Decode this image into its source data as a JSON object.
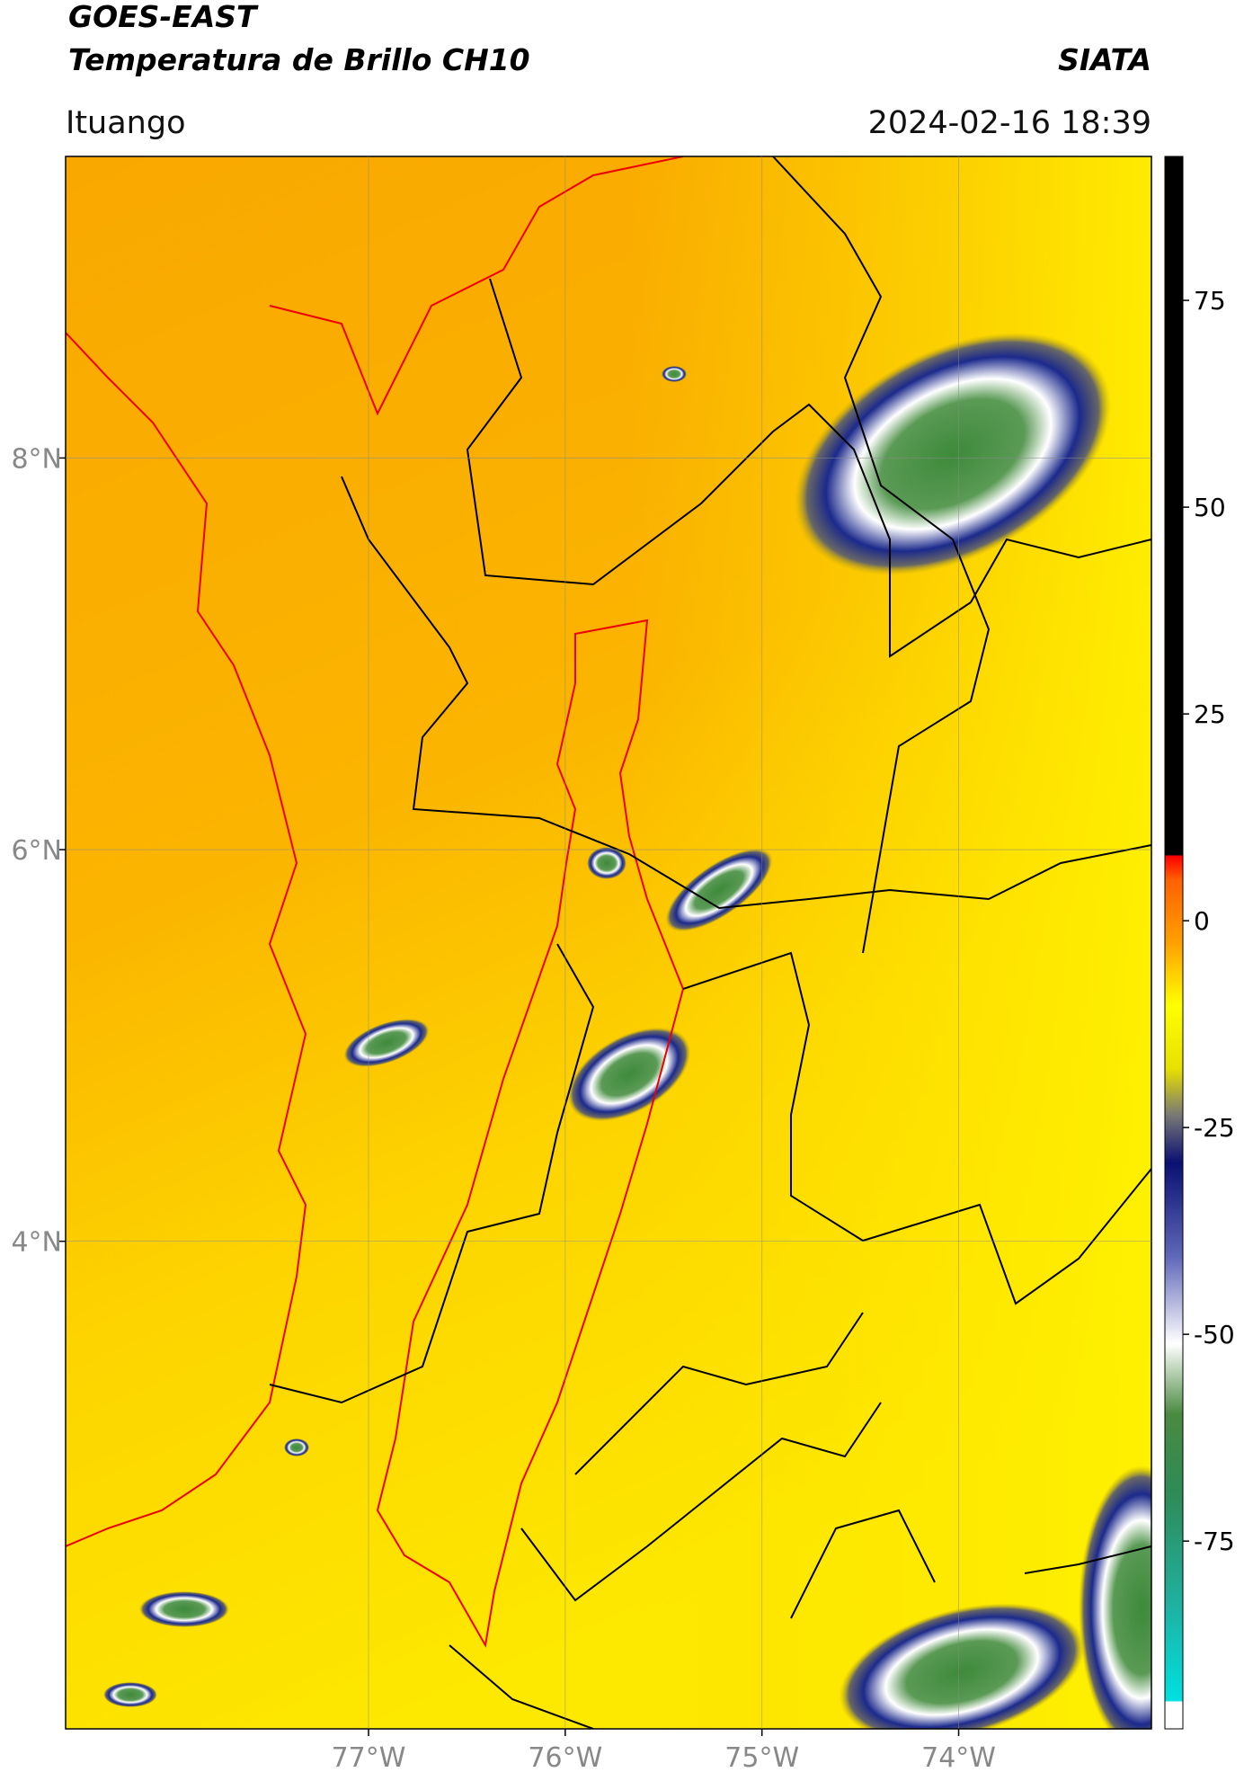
{
  "header": {
    "title_line1": "GOES-EAST",
    "title_line2": "Temperatura de Brillo CH10",
    "org": "SIATA",
    "location": "Ituango",
    "datetime": "2024-02-16 18:39"
  },
  "map": {
    "lon_lim": [
      -78.54,
      -73.02
    ],
    "lat_lim": [
      1.51,
      9.54
    ],
    "lon_ticks": [
      {
        "value": -77,
        "label": "77°W"
      },
      {
        "value": -76,
        "label": "76°W"
      },
      {
        "value": -75,
        "label": "75°W"
      },
      {
        "value": -74,
        "label": "74°W"
      }
    ],
    "lat_ticks": [
      {
        "value": 8,
        "label": "8°N"
      },
      {
        "value": 6,
        "label": "6°N"
      },
      {
        "value": 4,
        "label": "4°N"
      }
    ]
  },
  "colorbar": {
    "lim": [
      -97.7,
      92.4
    ],
    "ticks": [
      75,
      50,
      25,
      0,
      -25,
      -50,
      -75
    ]
  }
}
